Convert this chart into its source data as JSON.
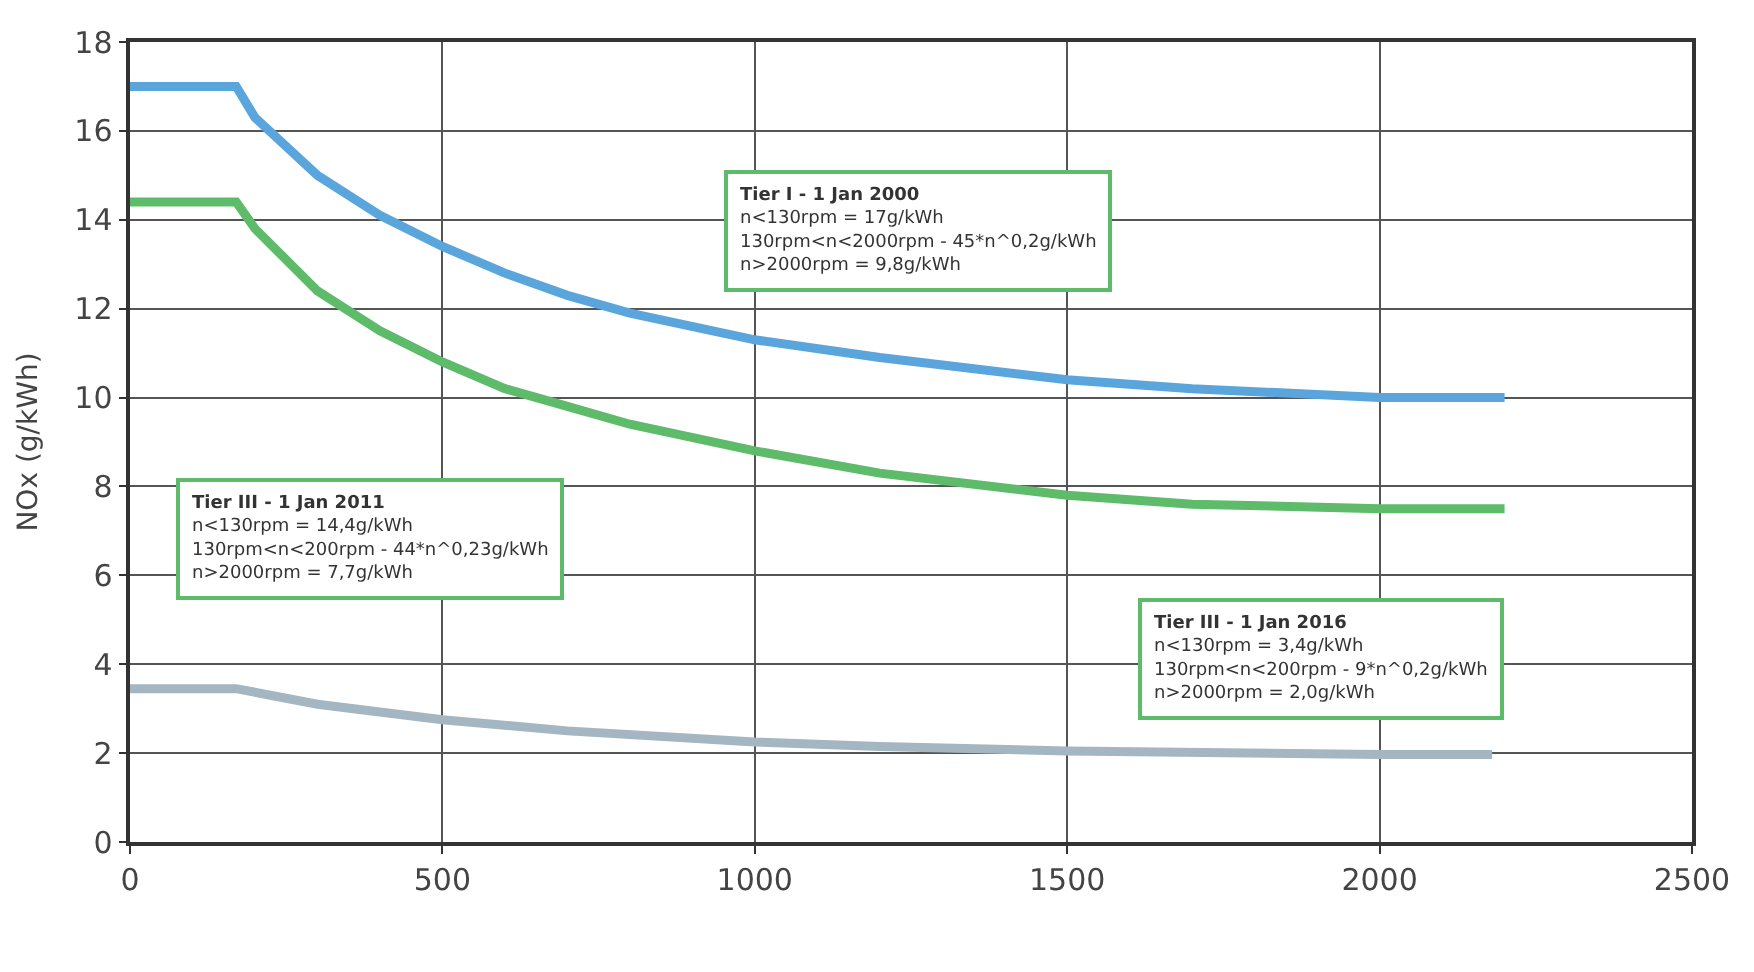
{
  "chart_data": {
    "type": "line",
    "ylabel": "NOx (g/kWh)",
    "series": [
      {
        "color": "#5aa5dc",
        "x": [
          0,
          170,
          200,
          300,
          400,
          500,
          600,
          700,
          800,
          1000,
          1200,
          1500,
          1700,
          2000,
          2200
        ],
        "values": [
          17,
          17,
          16.3,
          15.0,
          14.1,
          13.4,
          12.8,
          12.3,
          11.9,
          11.3,
          10.9,
          10.4,
          10.2,
          10.0,
          10.0
        ]
      },
      {
        "color": "#5dbb6a",
        "x": [
          0,
          170,
          200,
          300,
          400,
          500,
          600,
          700,
          800,
          1000,
          1200,
          1500,
          1700,
          2000,
          2200
        ],
        "values": [
          14.4,
          14.4,
          13.8,
          12.4,
          11.5,
          10.8,
          10.2,
          9.8,
          9.4,
          8.8,
          8.3,
          7.8,
          7.6,
          7.5,
          7.5
        ]
      },
      {
        "color": "#a3b6c2",
        "x": [
          0,
          170,
          300,
          500,
          700,
          1000,
          1200,
          1500,
          2000,
          2180
        ],
        "values": [
          3.45,
          3.45,
          3.1,
          2.75,
          2.5,
          2.25,
          2.15,
          2.05,
          1.97,
          1.97
        ]
      }
    ],
    "annotations": [
      "Tier I - 1 Jan 2000\nn<130rpm = 17g/kWh\n130rpm<n<2000rpm - 45*n^0,2g/kWh\nn>2000rpm = 9,8g/kWh",
      "Tier III - 1 Jan 2011\nn<130rpm = 14,4g/kWh\n130rpm<n<200rpm - 44*n^0,23g/kWh\nn>2000rpm = 7,7g/kWh",
      "Tier III - 1 Jan 2016\nn<130rpm = 3,4g/kWh\n130rpm<n<200rpm - 9*n^0,2g/kWh\nn>2000rpm = 2,0g/kWh"
    ],
    "xlim": [
      0,
      2500
    ],
    "xticks": [
      0,
      500,
      1000,
      1500,
      2000,
      2500
    ],
    "ylim": [
      0,
      18
    ],
    "yticks": [
      0,
      2,
      4,
      6,
      8,
      10,
      12,
      14,
      16,
      18
    ],
    "grid": true,
    "line_style": "solid",
    "marker": "none"
  }
}
